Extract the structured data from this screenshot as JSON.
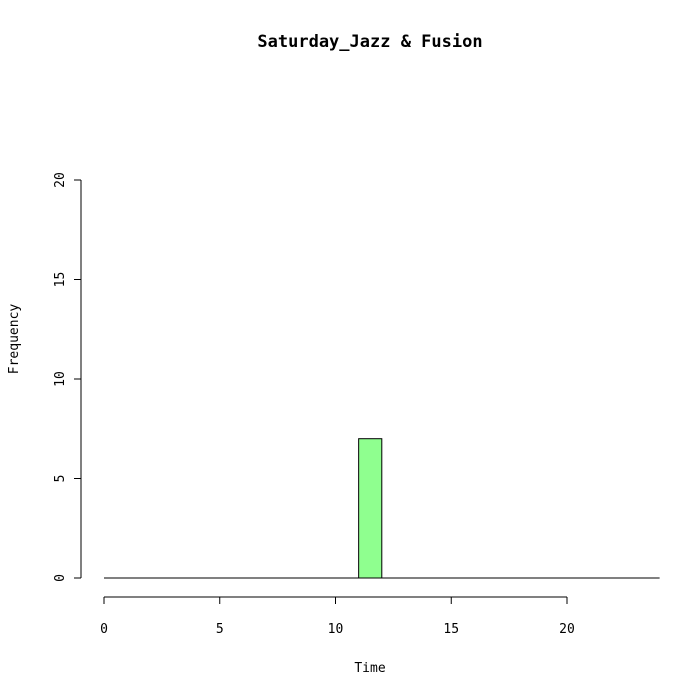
{
  "chart_data": {
    "type": "bar",
    "title": "Saturday_Jazz & Fusion",
    "xlabel": "Time",
    "ylabel": "Frequency",
    "xlim": [
      0,
      24
    ],
    "ylim": [
      0,
      20
    ],
    "x_ticks": [
      0,
      5,
      10,
      15,
      20
    ],
    "y_ticks": [
      0,
      5,
      10,
      15,
      20
    ],
    "bins": [
      {
        "start": 11,
        "end": 12,
        "count": 7
      }
    ],
    "bar_color": "#8fff8f",
    "grid": false,
    "legend": "none"
  }
}
